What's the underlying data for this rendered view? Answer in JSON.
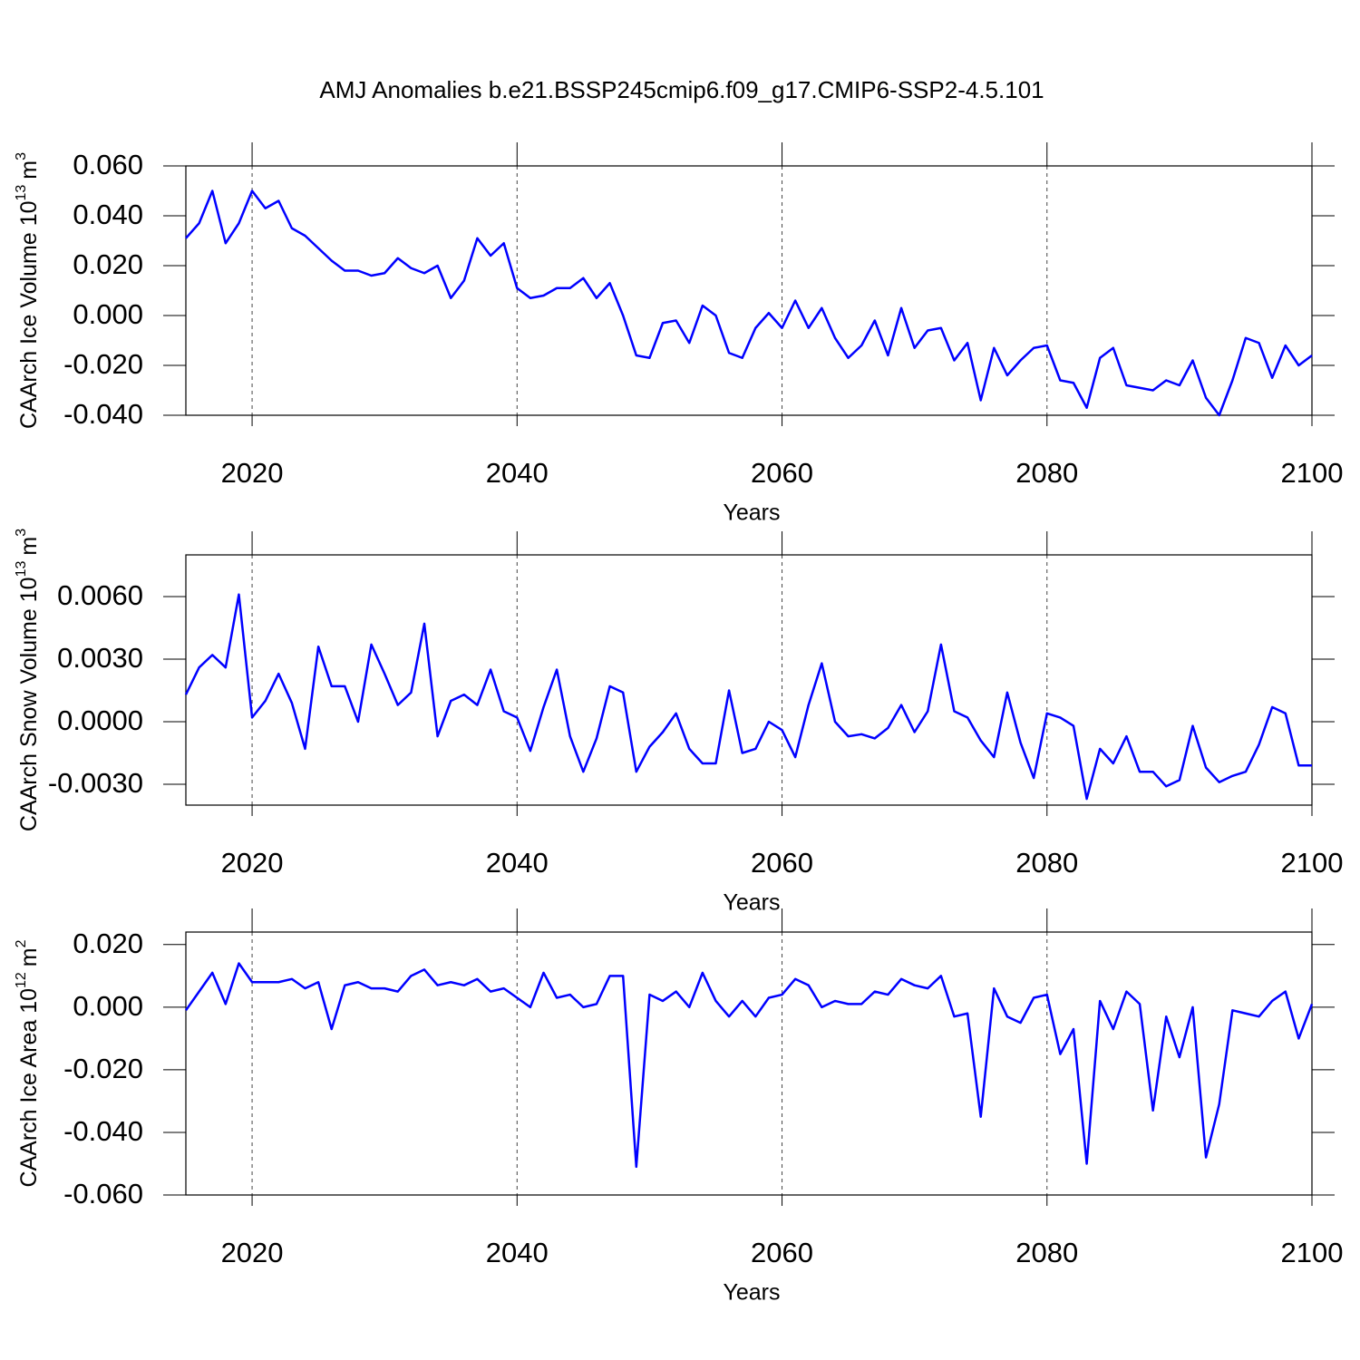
{
  "title": "AMJ Anomalies b.e21.BSSP245cmip6.f09_g17.CMIP6-SSP2-4.5.101",
  "chart_data": [
    {
      "type": "line",
      "ylabel": [
        "CAArch Ice Volume 10",
        "13",
        "m",
        "3"
      ],
      "xlabel": "Years",
      "color": "#0000ff",
      "xgrid": true,
      "xlim": [
        2015,
        2100
      ],
      "xticks": [
        2020,
        2040,
        2060,
        2080,
        2100
      ],
      "ylim": [
        -0.04,
        0.06
      ],
      "yticks": [
        {
          "value": -0.04,
          "label": "-0.040"
        },
        {
          "value": -0.02,
          "label": "-0.020"
        },
        {
          "value": 0,
          "label": "0.000"
        },
        {
          "value": 0.02,
          "label": "0.020"
        },
        {
          "value": 0.04,
          "label": "0.040"
        },
        {
          "value": 0.06,
          "label": "0.060"
        }
      ],
      "x": [
        2015,
        2016,
        2017,
        2018,
        2019,
        2020,
        2021,
        2022,
        2023,
        2024,
        2025,
        2026,
        2027,
        2028,
        2029,
        2030,
        2031,
        2032,
        2033,
        2034,
        2035,
        2036,
        2037,
        2038,
        2039,
        2040,
        2041,
        2042,
        2043,
        2044,
        2045,
        2046,
        2047,
        2048,
        2049,
        2050,
        2051,
        2052,
        2053,
        2054,
        2055,
        2056,
        2057,
        2058,
        2059,
        2060,
        2061,
        2062,
        2063,
        2064,
        2065,
        2066,
        2067,
        2068,
        2069,
        2070,
        2071,
        2072,
        2073,
        2074,
        2075,
        2076,
        2077,
        2078,
        2079,
        2080,
        2081,
        2082,
        2083,
        2084,
        2085,
        2086,
        2087,
        2088,
        2089,
        2090,
        2091,
        2092,
        2093,
        2094,
        2095,
        2096,
        2097,
        2098,
        2099,
        2100
      ],
      "values": [
        0.031,
        0.037,
        0.05,
        0.029,
        0.037,
        0.05,
        0.043,
        0.046,
        0.035,
        0.032,
        0.027,
        0.022,
        0.018,
        0.018,
        0.016,
        0.017,
        0.023,
        0.019,
        0.017,
        0.02,
        0.007,
        0.014,
        0.031,
        0.024,
        0.029,
        0.011,
        0.007,
        0.008,
        0.011,
        0.011,
        0.015,
        0.007,
        0.013,
        0.0,
        -0.016,
        -0.017,
        -0.003,
        -0.002,
        -0.011,
        0.004,
        0.0,
        -0.015,
        -0.017,
        -0.005,
        0.001,
        -0.005,
        0.006,
        -0.005,
        0.003,
        -0.009,
        -0.017,
        -0.012,
        -0.002,
        -0.016,
        0.003,
        -0.013,
        -0.006,
        -0.005,
        -0.018,
        -0.011,
        -0.034,
        -0.013,
        -0.024,
        -0.018,
        -0.013,
        -0.012,
        -0.026,
        -0.027,
        -0.037,
        -0.017,
        -0.013,
        -0.028,
        -0.029,
        -0.03,
        -0.026,
        -0.028,
        -0.018,
        -0.033,
        -0.04,
        -0.026,
        -0.009,
        -0.011,
        -0.025,
        -0.012,
        -0.02,
        -0.016
      ]
    },
    {
      "type": "line",
      "ylabel": [
        "CAArch Snow Volume 10",
        "13",
        "m",
        "3"
      ],
      "xlabel": "Years",
      "color": "#0000ff",
      "xgrid": true,
      "xlim": [
        2015,
        2100
      ],
      "xticks": [
        2020,
        2040,
        2060,
        2080,
        2100
      ],
      "ylim": [
        -0.004,
        0.008
      ],
      "yticks": [
        {
          "value": -0.003,
          "label": "-0.0030"
        },
        {
          "value": 0,
          "label": "0.0000"
        },
        {
          "value": 0.003,
          "label": "0.0030"
        },
        {
          "value": 0.006,
          "label": "0.0060"
        }
      ],
      "x": [
        2015,
        2016,
        2017,
        2018,
        2019,
        2020,
        2021,
        2022,
        2023,
        2024,
        2025,
        2026,
        2027,
        2028,
        2029,
        2030,
        2031,
        2032,
        2033,
        2034,
        2035,
        2036,
        2037,
        2038,
        2039,
        2040,
        2041,
        2042,
        2043,
        2044,
        2045,
        2046,
        2047,
        2048,
        2049,
        2050,
        2051,
        2052,
        2053,
        2054,
        2055,
        2056,
        2057,
        2058,
        2059,
        2060,
        2061,
        2062,
        2063,
        2064,
        2065,
        2066,
        2067,
        2068,
        2069,
        2070,
        2071,
        2072,
        2073,
        2074,
        2075,
        2076,
        2077,
        2078,
        2079,
        2080,
        2081,
        2082,
        2083,
        2084,
        2085,
        2086,
        2087,
        2088,
        2089,
        2090,
        2091,
        2092,
        2093,
        2094,
        2095,
        2096,
        2097,
        2098,
        2099,
        2100
      ],
      "values": [
        0.0013,
        0.0026,
        0.0032,
        0.0026,
        0.0061,
        0.0002,
        0.001,
        0.0023,
        0.0009,
        -0.0013,
        0.0036,
        0.0017,
        0.0017,
        0.0,
        0.0037,
        0.0023,
        0.0008,
        0.0014,
        0.0047,
        -0.0007,
        0.001,
        0.0013,
        0.0008,
        0.0025,
        0.0005,
        0.0002,
        -0.0014,
        0.0007,
        0.0025,
        -0.0007,
        -0.0024,
        -0.0008,
        0.0017,
        0.0014,
        -0.0024,
        -0.0012,
        -0.0005,
        0.0004,
        -0.0013,
        -0.002,
        -0.002,
        0.0015,
        -0.0015,
        -0.0013,
        0.0,
        -0.0004,
        -0.0017,
        0.0008,
        0.0028,
        0.0,
        -0.0007,
        -0.0006,
        -0.0008,
        -0.0003,
        0.0008,
        -0.0005,
        0.0005,
        0.0037,
        0.0005,
        0.0002,
        -0.0009,
        -0.0017,
        0.0014,
        -0.001,
        -0.0027,
        0.0004,
        0.0002,
        -0.0002,
        -0.0037,
        -0.0013,
        -0.002,
        -0.0007,
        -0.0024,
        -0.0024,
        -0.0031,
        -0.0028,
        -0.0002,
        -0.0022,
        -0.0029,
        -0.0026,
        -0.0024,
        -0.0011,
        0.0007,
        0.0004,
        -0.0021,
        -0.0021
      ]
    },
    {
      "type": "line",
      "ylabel": [
        "CAArch Ice Area 10",
        "12",
        "m",
        "2"
      ],
      "xlabel": "Years",
      "color": "#0000ff",
      "xgrid": true,
      "xlim": [
        2015,
        2100
      ],
      "xticks": [
        2020,
        2040,
        2060,
        2080,
        2100
      ],
      "ylim": [
        -0.06,
        0.024
      ],
      "yticks": [
        {
          "value": -0.06,
          "label": "-0.060"
        },
        {
          "value": -0.04,
          "label": "-0.040"
        },
        {
          "value": -0.02,
          "label": "-0.020"
        },
        {
          "value": 0,
          "label": "0.000"
        },
        {
          "value": 0.02,
          "label": "0.020"
        }
      ],
      "x": [
        2015,
        2016,
        2017,
        2018,
        2019,
        2020,
        2021,
        2022,
        2023,
        2024,
        2025,
        2026,
        2027,
        2028,
        2029,
        2030,
        2031,
        2032,
        2033,
        2034,
        2035,
        2036,
        2037,
        2038,
        2039,
        2040,
        2041,
        2042,
        2043,
        2044,
        2045,
        2046,
        2047,
        2048,
        2049,
        2050,
        2051,
        2052,
        2053,
        2054,
        2055,
        2056,
        2057,
        2058,
        2059,
        2060,
        2061,
        2062,
        2063,
        2064,
        2065,
        2066,
        2067,
        2068,
        2069,
        2070,
        2071,
        2072,
        2073,
        2074,
        2075,
        2076,
        2077,
        2078,
        2079,
        2080,
        2081,
        2082,
        2083,
        2084,
        2085,
        2086,
        2087,
        2088,
        2089,
        2090,
        2091,
        2092,
        2093,
        2094,
        2095,
        2096,
        2097,
        2098,
        2099,
        2100
      ],
      "values": [
        -0.001,
        0.005,
        0.011,
        0.001,
        0.014,
        0.008,
        0.008,
        0.008,
        0.009,
        0.006,
        0.008,
        -0.007,
        0.007,
        0.008,
        0.006,
        0.006,
        0.005,
        0.01,
        0.012,
        0.007,
        0.008,
        0.007,
        0.009,
        0.005,
        0.006,
        0.003,
        0.0,
        0.011,
        0.003,
        0.004,
        0.0,
        0.001,
        0.01,
        0.01,
        -0.051,
        0.004,
        0.002,
        0.005,
        0.0,
        0.011,
        0.002,
        -0.003,
        0.002,
        -0.003,
        0.003,
        0.004,
        0.009,
        0.007,
        0.0,
        0.002,
        0.001,
        0.001,
        0.005,
        0.004,
        0.009,
        0.007,
        0.006,
        0.01,
        -0.003,
        -0.002,
        -0.035,
        0.006,
        -0.003,
        -0.005,
        0.003,
        0.004,
        -0.015,
        -0.007,
        -0.05,
        0.002,
        -0.007,
        0.005,
        0.001,
        -0.033,
        -0.003,
        -0.016,
        0.0,
        -0.048,
        -0.031,
        -0.001,
        -0.002,
        -0.003,
        0.002,
        0.005,
        -0.01,
        0.001
      ]
    }
  ]
}
